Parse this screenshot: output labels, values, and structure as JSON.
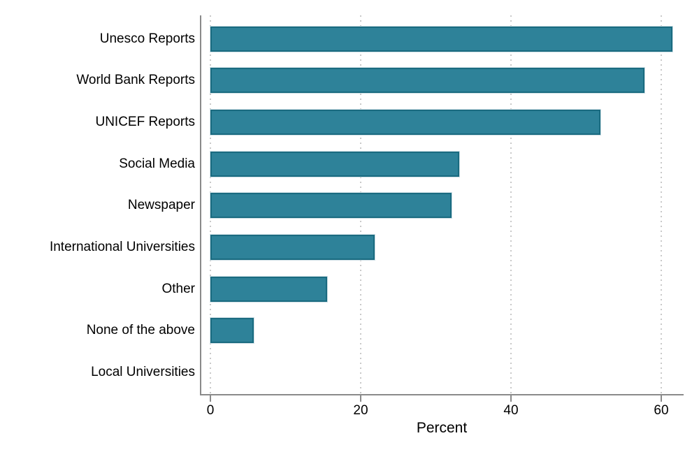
{
  "chart_data": {
    "type": "bar",
    "orientation": "horizontal",
    "title": "",
    "categories": [
      "Unesco Reports",
      "World Bank Reports",
      "UNICEF Reports",
      "Social Media",
      "Newspaper",
      "International Universities",
      "Other",
      "None of the above",
      "Local Universities"
    ],
    "values": [
      61.5,
      57.8,
      51.9,
      33.1,
      32.1,
      21.9,
      15.5,
      5.8,
      0
    ],
    "xlabel": "Percent",
    "ylabel": "",
    "xticks": [
      0,
      20,
      40,
      60
    ],
    "xlim": [
      0,
      63
    ],
    "grid": "vertical-dotted",
    "legend": "none",
    "colors": {
      "bar_fill": "#2e8299",
      "bar_border": "#1a6b80",
      "bar_halo": "#cfe0e6",
      "axis_line": "#8a8a8a",
      "gridline": "#c9c9c9",
      "text": "#000000",
      "background": "#ffffff"
    }
  }
}
